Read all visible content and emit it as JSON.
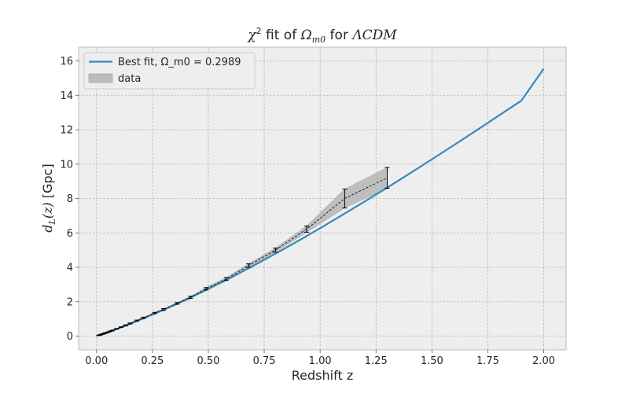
{
  "chart_data": {
    "type": "line",
    "title": {
      "prefix": "χ",
      "prefix_sup": "2",
      "middle": " fit of ",
      "omega": "Ω",
      "omega_sub": "m0",
      "suffix": " for ",
      "model": "ΛCDM"
    },
    "xlabel": "Redshift z",
    "ylabel": {
      "prefix": "d",
      "sub": "L",
      "arg": "(z)",
      "units": " [Gpc]"
    },
    "xlim": [
      -0.08,
      2.1
    ],
    "ylim": [
      -0.8,
      16.8
    ],
    "xticks": [
      0.0,
      0.25,
      0.5,
      0.75,
      1.0,
      1.25,
      1.5,
      1.75,
      2.0
    ],
    "xtick_labels": [
      "0.00",
      "0.25",
      "0.50",
      "0.75",
      "1.00",
      "1.25",
      "1.50",
      "1.75",
      "2.00"
    ],
    "yticks": [
      0,
      2,
      4,
      6,
      8,
      10,
      12,
      14,
      16
    ],
    "ytick_labels": [
      "0",
      "2",
      "4",
      "6",
      "8",
      "10",
      "12",
      "14",
      "16"
    ],
    "grid": true,
    "legend": {
      "placement": "top-left",
      "entries": [
        "Best fit, Ω_m0 = 0.2989",
        "data"
      ]
    },
    "series": [
      {
        "name": "Best fit, Ω_m0 = 0.2989",
        "kind": "line",
        "color": "#348abd",
        "x": [
          0.0,
          0.1,
          0.2,
          0.3,
          0.4,
          0.5,
          0.6,
          0.7,
          0.8,
          0.9,
          1.0,
          1.1,
          1.2,
          1.3,
          1.4,
          1.5,
          1.6,
          1.7,
          1.8,
          1.9,
          2.0
        ],
        "y": [
          0.0,
          0.46,
          0.97,
          1.52,
          2.11,
          2.74,
          3.39,
          4.08,
          4.79,
          5.52,
          6.27,
          7.05,
          7.83,
          8.63,
          9.45,
          10.28,
          11.12,
          11.97,
          12.83,
          13.69,
          15.55
        ]
      },
      {
        "name": "data",
        "kind": "errorbar-band",
        "color": "#000000",
        "band_color": "#bcbcbc",
        "x": [
          0.01,
          0.015,
          0.02,
          0.025,
          0.03,
          0.035,
          0.04,
          0.05,
          0.06,
          0.07,
          0.09,
          0.11,
          0.13,
          0.15,
          0.18,
          0.21,
          0.26,
          0.3,
          0.36,
          0.42,
          0.49,
          0.58,
          0.68,
          0.8,
          0.94,
          1.11,
          1.3
        ],
        "y": [
          0.04,
          0.06,
          0.09,
          0.11,
          0.13,
          0.15,
          0.18,
          0.22,
          0.27,
          0.32,
          0.42,
          0.52,
          0.62,
          0.73,
          0.9,
          1.06,
          1.34,
          1.55,
          1.9,
          2.25,
          2.75,
          3.32,
          4.1,
          5.0,
          6.22,
          8.0,
          9.2
        ],
        "err": [
          0.01,
          0.01,
          0.01,
          0.01,
          0.01,
          0.01,
          0.015,
          0.02,
          0.02,
          0.02,
          0.02,
          0.02,
          0.03,
          0.03,
          0.03,
          0.04,
          0.04,
          0.05,
          0.05,
          0.06,
          0.07,
          0.08,
          0.1,
          0.12,
          0.18,
          0.55,
          0.6
        ]
      }
    ]
  }
}
